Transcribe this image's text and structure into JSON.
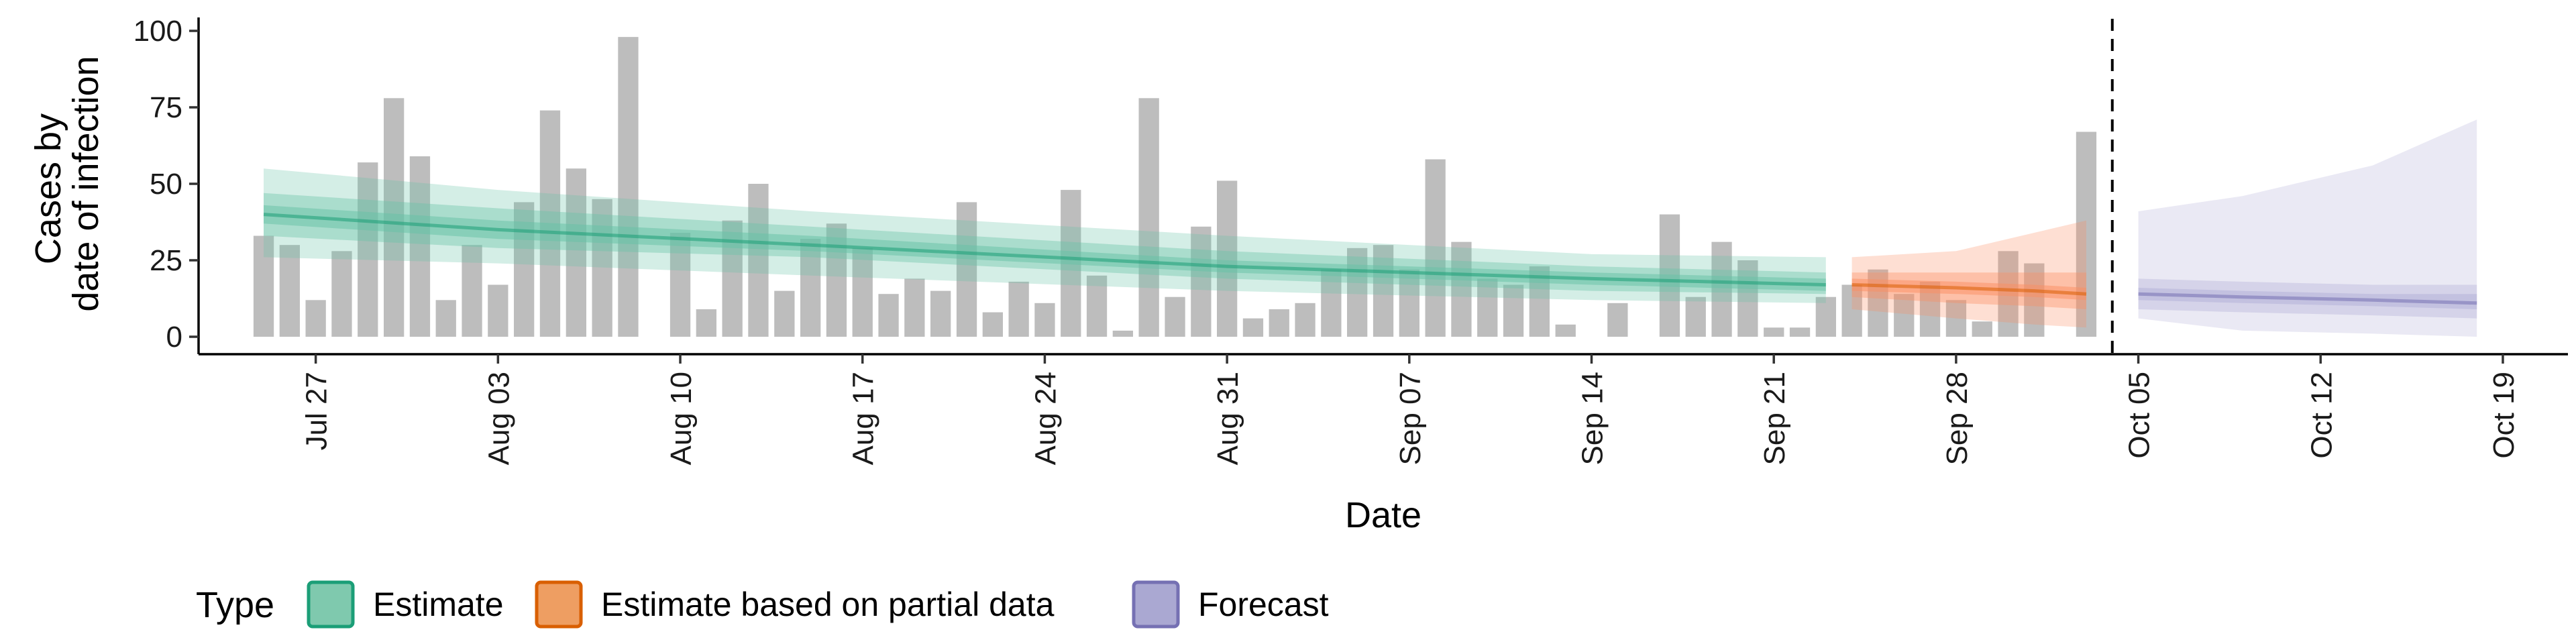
{
  "chart_data": {
    "type": "bar",
    "xlabel": "Date",
    "ylabel_lines": [
      "Cases by",
      "date of infection"
    ],
    "ylim": [
      0,
      100
    ],
    "yticks": [
      0,
      25,
      50,
      75,
      100
    ],
    "x_start": "2020-07-24",
    "xlim_days": [
      -1.5,
      89.5
    ],
    "xticks": [
      {
        "label": "Jul 27",
        "date": "2020-07-27"
      },
      {
        "label": "Aug 03",
        "date": "2020-08-03"
      },
      {
        "label": "Aug 10",
        "date": "2020-08-10"
      },
      {
        "label": "Aug 17",
        "date": "2020-08-17"
      },
      {
        "label": "Aug 24",
        "date": "2020-08-24"
      },
      {
        "label": "Aug 31",
        "date": "2020-08-31"
      },
      {
        "label": "Sep 07",
        "date": "2020-09-07"
      },
      {
        "label": "Sep 14",
        "date": "2020-09-14"
      },
      {
        "label": "Sep 21",
        "date": "2020-09-21"
      },
      {
        "label": "Sep 28",
        "date": "2020-09-28"
      },
      {
        "label": "Oct 05",
        "date": "2020-10-05"
      },
      {
        "label": "Oct 12",
        "date": "2020-10-12"
      },
      {
        "label": "Oct 19",
        "date": "2020-10-19"
      }
    ],
    "bars": {
      "first_date": "2020-07-25",
      "values": [
        33,
        30,
        12,
        28,
        57,
        78,
        59,
        12,
        30,
        17,
        44,
        74,
        55,
        45,
        98,
        0,
        34,
        9,
        38,
        50,
        15,
        32,
        37,
        29,
        14,
        19,
        15,
        44,
        8,
        18,
        11,
        48,
        20,
        2,
        78,
        13,
        36,
        51,
        6,
        9,
        11,
        22,
        29,
        30,
        22,
        58,
        31,
        19,
        17,
        23,
        4,
        0,
        11,
        0,
        40,
        13,
        31,
        25,
        3,
        3,
        13,
        17,
        22,
        14,
        18,
        12,
        5,
        28,
        24,
        0,
        67
      ],
      "color": "#bdbdbd"
    },
    "vline_date": "2020-10-04",
    "series": [
      {
        "name": "Estimate",
        "color": "#1b9e77",
        "fill": "#66c2a5",
        "points": [
          {
            "date": "2020-07-25",
            "median": 40,
            "lo20": 37,
            "hi20": 43,
            "lo50": 33,
            "hi50": 47,
            "lo90": 26,
            "hi90": 55
          },
          {
            "date": "2020-08-03",
            "median": 35,
            "lo20": 32,
            "hi20": 38,
            "lo50": 29,
            "hi50": 42,
            "lo90": 24,
            "hi90": 48
          },
          {
            "date": "2020-08-15",
            "median": 30,
            "lo20": 28,
            "hi20": 33,
            "lo50": 26,
            "hi50": 36,
            "lo90": 20,
            "hi90": 41
          },
          {
            "date": "2020-08-31",
            "median": 23,
            "lo20": 21,
            "hi20": 25,
            "lo50": 19,
            "hi50": 28,
            "lo90": 15,
            "hi90": 33
          },
          {
            "date": "2020-09-14",
            "median": 19,
            "lo20": 17,
            "hi20": 21,
            "lo50": 15,
            "hi50": 23,
            "lo90": 12,
            "hi90": 27
          },
          {
            "date": "2020-09-23",
            "median": 17,
            "lo20": 15,
            "hi20": 19,
            "lo50": 14,
            "hi50": 21,
            "lo90": 11,
            "hi90": 26
          }
        ]
      },
      {
        "name": "Estimate based on partial data",
        "color": "#d95f02",
        "fill": "#fc8d62",
        "points": [
          {
            "date": "2020-09-24",
            "median": 17,
            "lo20": 15,
            "hi20": 19,
            "lo50": 13,
            "hi50": 21,
            "lo90": 9,
            "hi90": 26
          },
          {
            "date": "2020-09-28",
            "median": 16,
            "lo20": 14,
            "hi20": 18,
            "lo50": 11,
            "hi50": 21,
            "lo90": 6,
            "hi90": 28
          },
          {
            "date": "2020-10-01",
            "median": 15,
            "lo20": 13,
            "hi20": 17,
            "lo50": 10,
            "hi50": 21,
            "lo90": 4,
            "hi90": 34
          },
          {
            "date": "2020-10-03",
            "median": 14,
            "lo20": 12,
            "hi20": 16,
            "lo50": 9,
            "hi50": 21,
            "lo90": 3,
            "hi90": 38
          }
        ]
      },
      {
        "name": "Forecast",
        "color": "#7570b3",
        "fill": "#b2b0d8",
        "points": [
          {
            "date": "2020-10-05",
            "median": 14,
            "lo20": 12,
            "hi20": 16,
            "lo50": 9,
            "hi50": 19,
            "lo90": 6,
            "hi90": 41
          },
          {
            "date": "2020-10-09",
            "median": 13,
            "lo20": 11,
            "hi20": 15,
            "lo50": 8,
            "hi50": 18,
            "lo90": 2,
            "hi90": 46
          },
          {
            "date": "2020-10-14",
            "median": 12,
            "lo20": 10,
            "hi20": 14,
            "lo50": 7,
            "hi50": 17,
            "lo90": 1,
            "hi90": 56
          },
          {
            "date": "2020-10-18",
            "median": 11,
            "lo20": 9,
            "hi20": 14,
            "lo50": 6,
            "hi50": 17,
            "lo90": 0,
            "hi90": 71
          }
        ]
      }
    ],
    "legend": {
      "title": "Type",
      "position": "bottom-left",
      "items": [
        {
          "label": "Estimate",
          "fill": "#7fc9ae",
          "stroke": "#1b9e77"
        },
        {
          "label": "Estimate based on partial data",
          "fill": "#ee9e62",
          "stroke": "#d95f02"
        },
        {
          "label": "Forecast",
          "fill": "#aaa8d2",
          "stroke": "#7570b3"
        }
      ]
    }
  }
}
